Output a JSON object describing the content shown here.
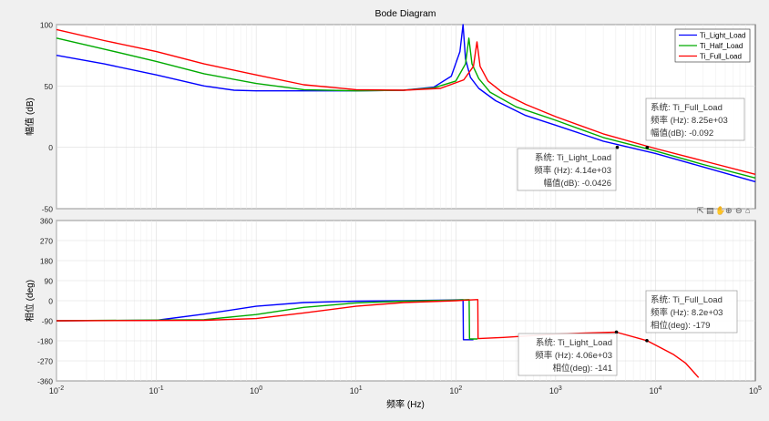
{
  "chart_data": {
    "type": "line",
    "title": "Bode Diagram",
    "xlabel": "频率  (Hz)",
    "x_scale": "log",
    "xlim": [
      0.01,
      100000
    ],
    "x_ticks": [
      {
        "value": 0.01,
        "base": "10",
        "exp": "-2"
      },
      {
        "value": 0.1,
        "base": "10",
        "exp": "-1"
      },
      {
        "value": 1,
        "base": "10",
        "exp": "0"
      },
      {
        "value": 10,
        "base": "10",
        "exp": "1"
      },
      {
        "value": 100,
        "base": "10",
        "exp": "2"
      },
      {
        "value": 1000,
        "base": "10",
        "exp": "3"
      },
      {
        "value": 10000,
        "base": "10",
        "exp": "4"
      },
      {
        "value": 100000,
        "base": "10",
        "exp": "5"
      }
    ],
    "series_colors": {
      "Ti_Light_Load": "#0000ff",
      "Ti_Half_Load": "#00aa00",
      "Ti_Full_Load": "#ff0000"
    },
    "magnitude": {
      "ylabel": "幅值 (dB)",
      "ylim": [
        -50,
        100
      ],
      "y_ticks": [
        "100",
        "50",
        "0",
        "-50"
      ],
      "y_tick_values": [
        100,
        50,
        0,
        -50
      ],
      "legend": [
        "Ti_Light_Load",
        "Ti_Half_Load",
        "Ti_Full_Load"
      ],
      "series": [
        {
          "name": "Ti_Light_Load",
          "points": [
            [
              0.01,
              75
            ],
            [
              0.03,
              68
            ],
            [
              0.1,
              59
            ],
            [
              0.3,
              50
            ],
            [
              0.6,
              46.5
            ],
            [
              1,
              46
            ],
            [
              3,
              46
            ],
            [
              10,
              46
            ],
            [
              30,
              46.5
            ],
            [
              60,
              49
            ],
            [
              90,
              58
            ],
            [
              110,
              78
            ],
            [
              118,
              100
            ],
            [
              125,
              72
            ],
            [
              140,
              57
            ],
            [
              170,
              48
            ],
            [
              250,
              38
            ],
            [
              500,
              26
            ],
            [
              1000,
              18
            ],
            [
              3000,
              5
            ],
            [
              10000,
              -5
            ],
            [
              30000,
              -16
            ],
            [
              100000,
              -28
            ]
          ]
        },
        {
          "name": "Ti_Half_Load",
          "points": [
            [
              0.01,
              89
            ],
            [
              0.03,
              80
            ],
            [
              0.1,
              70
            ],
            [
              0.3,
              60
            ],
            [
              1,
              52
            ],
            [
              3,
              47
            ],
            [
              10,
              46
            ],
            [
              30,
              46.5
            ],
            [
              60,
              48.5
            ],
            [
              100,
              54
            ],
            [
              125,
              68
            ],
            [
              135,
              89
            ],
            [
              145,
              68
            ],
            [
              170,
              56
            ],
            [
              220,
              45
            ],
            [
              400,
              33
            ],
            [
              1000,
              22
            ],
            [
              3000,
              8
            ],
            [
              10000,
              -3
            ],
            [
              30000,
              -14
            ],
            [
              100000,
              -25
            ]
          ]
        },
        {
          "name": "Ti_Full_Load",
          "points": [
            [
              0.01,
              96
            ],
            [
              0.03,
              87
            ],
            [
              0.1,
              78
            ],
            [
              0.3,
              68
            ],
            [
              1,
              59
            ],
            [
              3,
              51
            ],
            [
              10,
              47
            ],
            [
              30,
              46.5
            ],
            [
              70,
              48
            ],
            [
              120,
              55
            ],
            [
              150,
              66
            ],
            [
              163,
              86
            ],
            [
              175,
              66
            ],
            [
              210,
              54
            ],
            [
              300,
              44
            ],
            [
              500,
              35
            ],
            [
              1000,
              25
            ],
            [
              3000,
              11
            ],
            [
              10000,
              -1
            ],
            [
              30000,
              -11
            ],
            [
              100000,
              -22
            ]
          ]
        }
      ]
    },
    "phase": {
      "ylabel": "相位 (deg)",
      "ylim": [
        -360,
        360
      ],
      "y_ticks": [
        "360",
        "270",
        "180",
        "90",
        "0",
        "-90",
        "-180",
        "-270",
        "-360"
      ],
      "y_tick_values": [
        360,
        270,
        180,
        90,
        0,
        -90,
        -180,
        -270,
        -360
      ],
      "series": [
        {
          "name": "Ti_Light_Load",
          "points": [
            [
              0.01,
              -90
            ],
            [
              0.1,
              -88
            ],
            [
              0.3,
              -60
            ],
            [
              1,
              -25
            ],
            [
              3,
              -8
            ],
            [
              10,
              -2
            ],
            [
              30,
              0
            ],
            [
              80,
              3
            ],
            [
              113,
              4
            ],
            [
              118,
              4
            ],
            [
              119,
              -175
            ],
            [
              150,
              -175
            ]
          ]
        },
        {
          "name": "Ti_Half_Load",
          "points": [
            [
              0.01,
              -90
            ],
            [
              0.3,
              -85
            ],
            [
              1,
              -62
            ],
            [
              3,
              -30
            ],
            [
              10,
              -10
            ],
            [
              30,
              -2
            ],
            [
              100,
              3
            ],
            [
              133,
              5
            ],
            [
              136,
              5
            ],
            [
              137,
              -172
            ],
            [
              165,
              -172
            ]
          ]
        },
        {
          "name": "Ti_Full_Load",
          "points": [
            [
              0.01,
              -90
            ],
            [
              0.3,
              -88
            ],
            [
              1,
              -80
            ],
            [
              3,
              -55
            ],
            [
              10,
              -25
            ],
            [
              30,
              -8
            ],
            [
              100,
              0
            ],
            [
              160,
              5
            ],
            [
              166,
              5
            ],
            [
              167,
              -170
            ],
            [
              300,
              -165
            ],
            [
              1000,
              -150
            ],
            [
              2000,
              -145
            ],
            [
              4060,
              -141
            ],
            [
              8200,
              -179
            ],
            [
              15000,
              -240
            ],
            [
              20000,
              -280
            ],
            [
              27000,
              -345
            ]
          ]
        }
      ]
    },
    "datatips": {
      "mag_full": {
        "label": "系统",
        "name": "Ti_Full_Load",
        "line2_label": "频率 (Hz)",
        "line2_value": "8.25e+03",
        "line3_label": "幅值(dB)",
        "line3_value": "-0.092",
        "x": 8250,
        "y": -0.092
      },
      "mag_light": {
        "label": "系统",
        "name": "Ti_Light_Load",
        "line2_label": "频率 (Hz)",
        "line2_value": "4.14e+03",
        "line3_label": "幅值(dB)",
        "line3_value": "-0.0426",
        "x": 4140,
        "y": -0.0426
      },
      "phase_full": {
        "label": "系统",
        "name": "Ti_Full_Load",
        "line2_label": "频率 (Hz)",
        "line2_value": "8.2e+03",
        "line3_label": "相位(deg)",
        "line3_value": "-179",
        "x": 8200,
        "y": -179
      },
      "phase_light": {
        "label": "系统",
        "name": "Ti_Light_Load",
        "line2_label": "频率 (Hz)",
        "line2_value": "4.06e+03",
        "line3_label": "相位(deg)",
        "line3_value": "-141",
        "x": 4060,
        "y": -141
      }
    },
    "toolbar": [
      "export-icon",
      "brush-icon",
      "pan-icon",
      "zoom-in-icon",
      "zoom-out-icon",
      "home-icon"
    ]
  }
}
